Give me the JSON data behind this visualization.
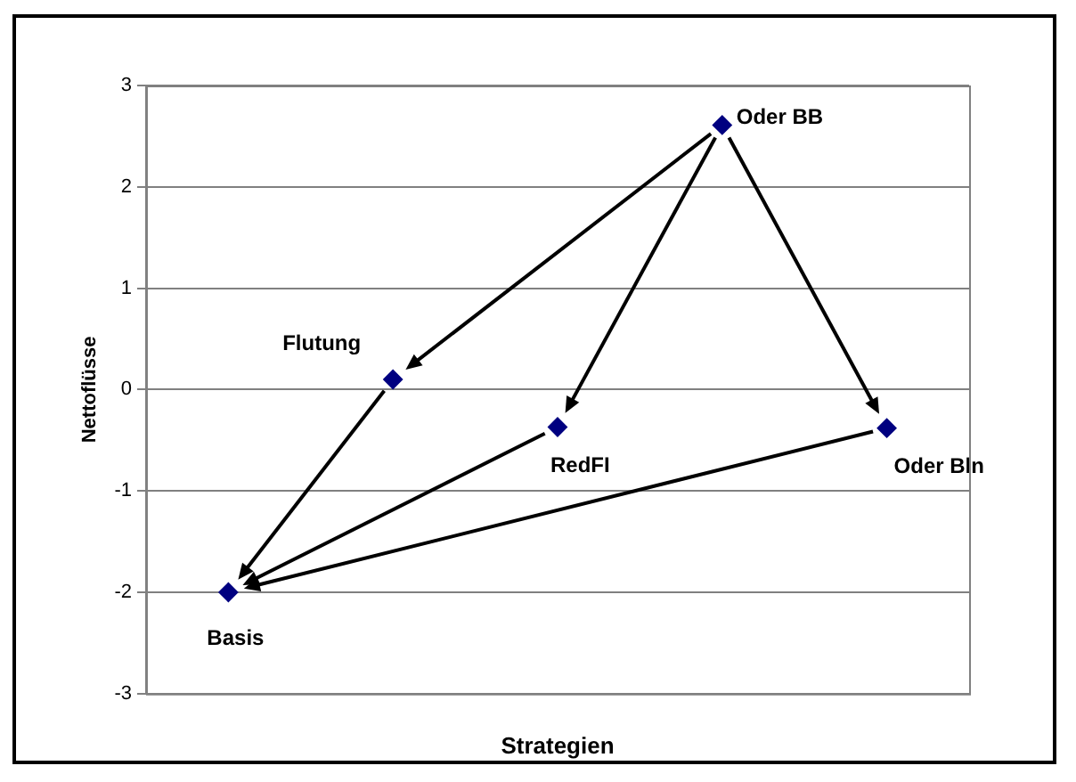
{
  "chart_data": {
    "type": "scatter",
    "xlabel": "Strategien",
    "ylabel": "Nettoflüsse",
    "categories": [
      null,
      null,
      null,
      null,
      null
    ],
    "series": [
      {
        "color": "#000080",
        "values": [
          -2,
          0.1,
          -0.37,
          2.61,
          -0.38
        ]
      }
    ],
    "ylim": [
      -3,
      3
    ],
    "yticks": [
      -3,
      -2,
      -1,
      0,
      1,
      2,
      3
    ],
    "tick_labels": "y",
    "grid": "y",
    "marker": "diamond",
    "legend": false,
    "annotations": [
      "Basis",
      "Flutung",
      "RedFI",
      "Oder BB",
      "Oder Bln"
    ]
  }
}
